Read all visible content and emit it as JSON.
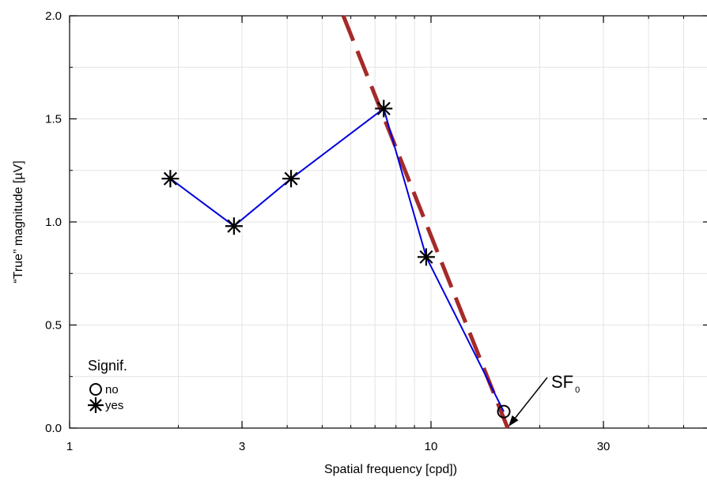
{
  "chart_data": {
    "type": "line",
    "xlabel": "Spatial frequency [cpd])",
    "ylabel": "“True” magnitude [µV]",
    "x_scale": "log",
    "xlim": [
      1,
      50
    ],
    "ylim": [
      0,
      2.0
    ],
    "x_ticks": [
      {
        "value": 1,
        "label": "1"
      },
      {
        "value": 3,
        "label": "3"
      },
      {
        "value": 10,
        "label": "10"
      },
      {
        "value": 30,
        "label": "30"
      }
    ],
    "y_ticks": [
      {
        "value": 0,
        "label": "0.0"
      },
      {
        "value": 0.5,
        "label": "0.5"
      },
      {
        "value": 1.0,
        "label": "1.0"
      },
      {
        "value": 1.5,
        "label": "1.5"
      },
      {
        "value": 2.0,
        "label": "2.0"
      }
    ],
    "grid": true,
    "series": [
      {
        "color": "#0000dd",
        "points": [
          {
            "x": 1.9,
            "y": 1.21,
            "signif": "yes"
          },
          {
            "x": 2.85,
            "y": 0.98,
            "signif": "yes"
          },
          {
            "x": 4.1,
            "y": 1.21,
            "signif": "yes"
          },
          {
            "x": 7.4,
            "y": 1.55,
            "signif": "yes"
          },
          {
            "x": 9.7,
            "y": 0.83,
            "signif": "yes"
          },
          {
            "x": 15.9,
            "y": 0.08,
            "signif": "no"
          }
        ]
      }
    ],
    "fit_line": {
      "color": "#a52a2a",
      "style": "dashed",
      "points": [
        {
          "x": 5.72,
          "y": 2.0
        },
        {
          "x": 16.3,
          "y": 0.0
        }
      ]
    },
    "legend": {
      "title": "Signif.",
      "placement": "bottom-left",
      "entries": [
        {
          "marker": "circle",
          "label": "no"
        },
        {
          "marker": "asterisk",
          "label": "yes"
        }
      ]
    },
    "annotation": {
      "text": "SF",
      "subscript": "0",
      "target": {
        "x": 16.3,
        "y": 0.0
      }
    }
  }
}
